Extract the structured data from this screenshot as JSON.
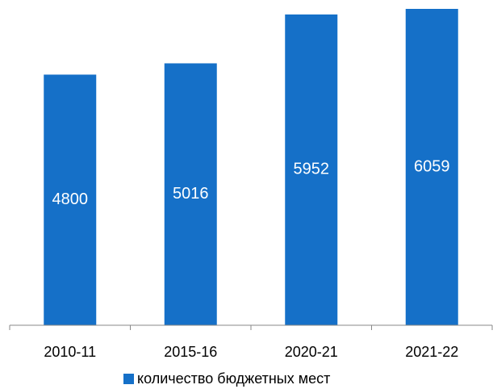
{
  "chart_data": {
    "type": "bar",
    "categories": [
      "2010-11",
      "2015-16",
      "2020-21",
      "2021-22"
    ],
    "series": [
      {
        "name": "количество бюджетных мест",
        "color": "#1570c8",
        "values": [
          4800,
          5016,
          5952,
          6059
        ]
      }
    ]
  }
}
